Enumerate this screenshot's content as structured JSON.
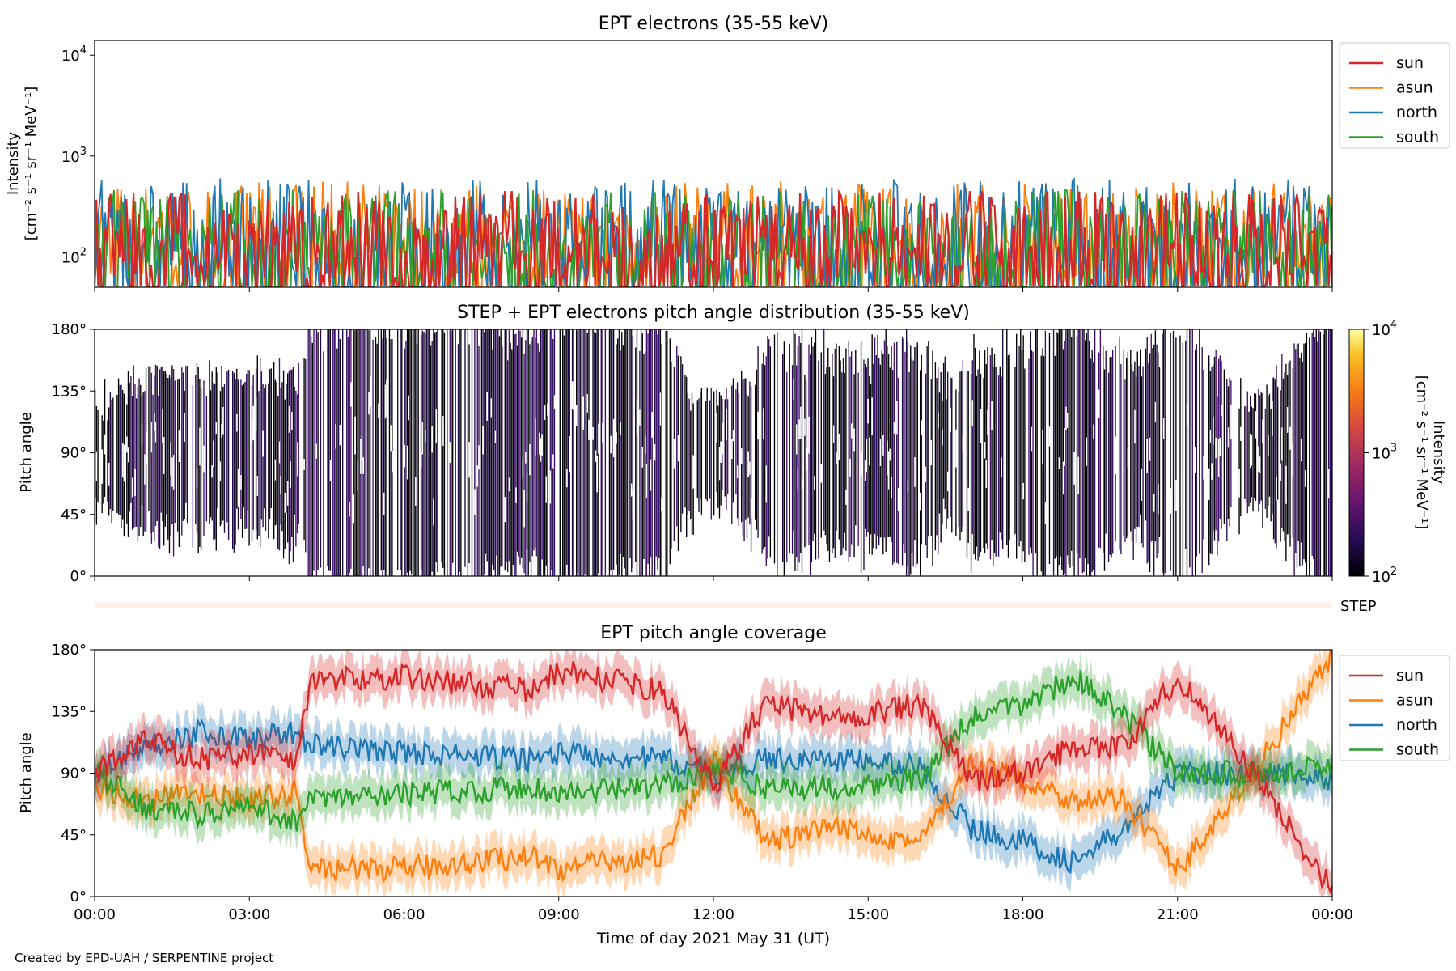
{
  "footer": "Created by EPD-UAH / SERPENTINE project",
  "chart_data": [
    {
      "type": "line",
      "title": "EPT electrons (35-55 keV)",
      "ylabel": "Intensity",
      "yunits": "[cm⁻² s⁻¹ sr⁻¹ MeV⁻¹]",
      "yscale": "log",
      "ylim": [
        50,
        14000
      ],
      "yticks": [
        "10^4",
        "10^3",
        "10^2"
      ],
      "xlim": [
        "00:00",
        "24:00"
      ],
      "legend": "outside-top-right",
      "series": [
        {
          "name": "sun",
          "color": "#d62728",
          "typical_range": [
            50,
            600
          ]
        },
        {
          "name": "asun",
          "color": "#ff7f0e",
          "typical_range": [
            50,
            750
          ]
        },
        {
          "name": "north",
          "color": "#1f77b4",
          "typical_range": [
            50,
            800
          ]
        },
        {
          "name": "south",
          "color": "#2ca02c",
          "typical_range": [
            50,
            620
          ]
        }
      ]
    },
    {
      "type": "heatmap",
      "title": "STEP + EPT electrons pitch angle distribution (35-55 keV)",
      "ylabel": "Pitch angle",
      "ylim": [
        0,
        180
      ],
      "yticks": [
        "0°",
        "45°",
        "90°",
        "135°",
        "180°"
      ],
      "xlim": [
        "00:00",
        "24:00"
      ],
      "colorbar": {
        "label": "Intensity",
        "units": "[cm⁻² s⁻¹ sr⁻¹ MeV⁻¹]",
        "scale": "log",
        "range": [
          100,
          10000
        ],
        "ticks": [
          "10^4",
          "10^3",
          "10^2"
        ],
        "colormap": "inferno"
      },
      "strip_label": "STEP"
    },
    {
      "type": "line",
      "title": "EPT pitch angle coverage",
      "ylabel": "Pitch angle",
      "xlabel": "Time of day 2021 May 31 (UT)",
      "ylim": [
        0,
        180
      ],
      "yticks": [
        "0°",
        "45°",
        "90°",
        "135°",
        "180°"
      ],
      "xticks": [
        "00:00",
        "03:00",
        "06:00",
        "09:00",
        "12:00",
        "15:00",
        "18:00",
        "21:00",
        "00:00"
      ],
      "legend": "outside-top-right",
      "band": "shaded ± spread around each series",
      "series": [
        {
          "name": "sun",
          "color": "#d62728",
          "hours": [
            0,
            1,
            2,
            3,
            3.9,
            4.2,
            6,
            8.5,
            9,
            11,
            12,
            13,
            14.5,
            16,
            17,
            18,
            19,
            20,
            21,
            22,
            23,
            24
          ],
          "values": [
            90,
            115,
            100,
            105,
            100,
            158,
            160,
            150,
            165,
            150,
            80,
            140,
            130,
            140,
            85,
            90,
            110,
            110,
            160,
            115,
            60,
            5
          ]
        },
        {
          "name": "asun",
          "color": "#ff7f0e",
          "hours": [
            0,
            1,
            2,
            3,
            3.9,
            4.2,
            6,
            8.5,
            9,
            11,
            12,
            13,
            14.5,
            16,
            17,
            18,
            19,
            20,
            21,
            22,
            23,
            24
          ],
          "values": [
            80,
            70,
            75,
            70,
            75,
            20,
            20,
            30,
            20,
            30,
            100,
            40,
            50,
            40,
            95,
            85,
            70,
            70,
            20,
            65,
            120,
            175
          ]
        },
        {
          "name": "north",
          "color": "#1f77b4",
          "hours": [
            0,
            1,
            2,
            3,
            3.9,
            4.2,
            6,
            8.5,
            9,
            11,
            12,
            13,
            14.5,
            16,
            17,
            18,
            19,
            20,
            21,
            22,
            23,
            24
          ],
          "values": [
            90,
            110,
            120,
            115,
            120,
            110,
            105,
            100,
            105,
            100,
            90,
            100,
            100,
            95,
            50,
            40,
            25,
            50,
            90,
            90,
            90,
            85
          ]
        },
        {
          "name": "south",
          "color": "#2ca02c",
          "hours": [
            0,
            1,
            2,
            3,
            3.9,
            4.2,
            6,
            8.5,
            9,
            11,
            12,
            13,
            14.5,
            16,
            17,
            18,
            19,
            20,
            21,
            22,
            23,
            24
          ],
          "values": [
            90,
            65,
            60,
            65,
            55,
            70,
            75,
            80,
            75,
            80,
            95,
            80,
            80,
            85,
            130,
            140,
            160,
            130,
            90,
            90,
            90,
            95
          ]
        }
      ]
    }
  ]
}
